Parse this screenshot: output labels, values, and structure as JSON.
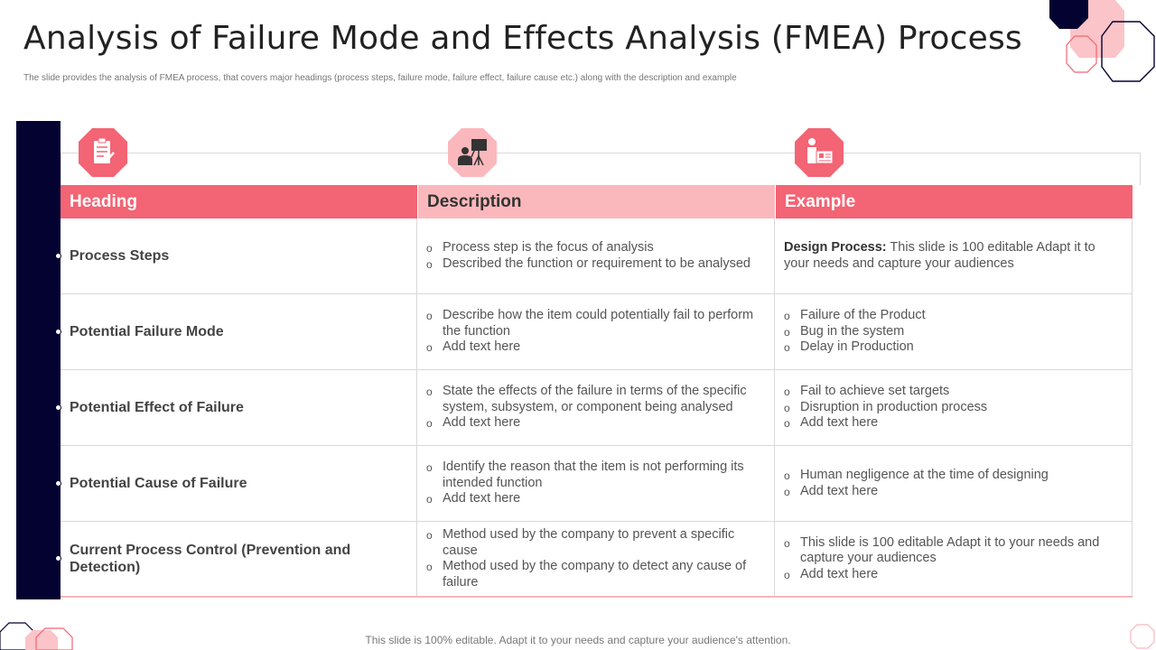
{
  "slide": {
    "title": "Analysis of Failure Mode and Effects Analysis (FMEA) Process",
    "subtitle": "The slide provides the analysis of FMEA process, that covers major headings (process steps, failure mode, failure effect, failure cause etc.) along with the description and example",
    "footer": "This slide is 100% editable. Adapt it to your needs and capture your audience's attention."
  },
  "colors": {
    "accent_pink": "#f36474",
    "light_pink": "#fbb8bc",
    "navy": "#040230"
  },
  "icons": {
    "heading": "checklist-clipboard-icon",
    "description": "presenter-board-icon",
    "example": "person-id-card-icon"
  },
  "table": {
    "headers": [
      "Heading",
      "Description",
      "Example"
    ],
    "rows": [
      {
        "heading": "Process Steps",
        "description": [
          "Process step is the focus of analysis",
          "Described the function or requirement to be analysed"
        ],
        "example_label": "Design Process:",
        "example_text": "This slide is 100 editable Adapt it to your needs and capture your audiences"
      },
      {
        "heading": "Potential Failure Mode",
        "description": [
          "Describe how the item could potentially fail to perform the function",
          "Add text here"
        ],
        "example": [
          "Failure of the Product",
          "Bug in the system",
          "Delay in Production"
        ]
      },
      {
        "heading": "Potential Effect of Failure",
        "description": [
          "State the effects of the failure in terms of the specific system, subsystem, or component being analysed",
          "Add text here"
        ],
        "example": [
          "Fail to achieve set targets",
          "Disruption in production process",
          "Add text here"
        ]
      },
      {
        "heading": "Potential Cause of Failure",
        "description": [
          "Identify the reason that the item is not performing its intended function",
          "Add text here"
        ],
        "example": [
          "Human negligence at the time of designing",
          "Add text here"
        ]
      },
      {
        "heading": "Current Process Control (Prevention and Detection)",
        "description": [
          "Method used by the company to prevent a specific cause",
          "Method used by the company to detect any cause of failure"
        ],
        "example": [
          "This slide is 100 editable Adapt it to your needs and capture your audiences",
          "Add text here"
        ]
      }
    ]
  }
}
